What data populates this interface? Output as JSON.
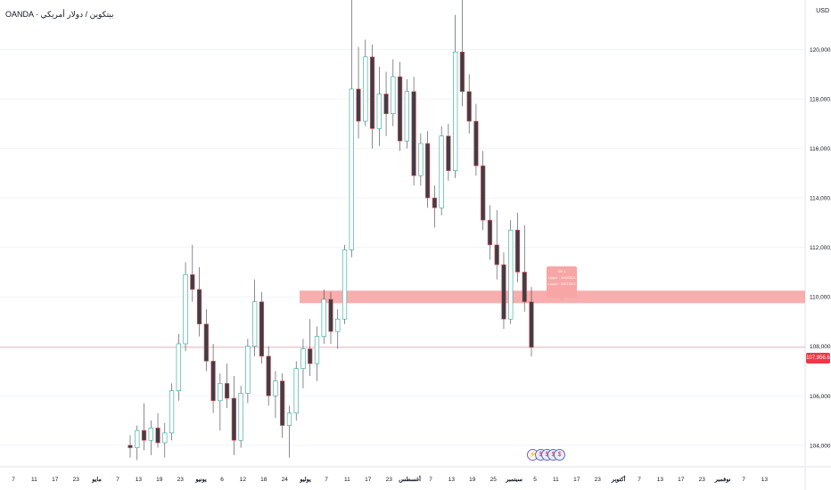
{
  "header": {
    "title": "OANDA · بيتكوين / دولار أمريكي",
    "currency": "USD"
  },
  "colors": {
    "up": "#26a69a",
    "down": "#ef5350",
    "zone": "#f7a5a5",
    "price_line": "#f23645",
    "grid": "#f0f3fa",
    "axis_text": "#131722"
  },
  "zone_tooltip": {
    "line1": "SR 1",
    "line2": "Upper : 110250.5",
    "line3": "Lower : 109746.5"
  },
  "current_price": {
    "label": "107,956.6",
    "value": 107956.6
  },
  "events": [
    "lightning-icon",
    "us-flag-icon",
    "us-flag-icon",
    "us-flag-icon",
    "us-flag-icon"
  ],
  "chart_data": {
    "type": "candlestick",
    "y_ticks": [
      "120,000.0",
      "118,000.0",
      "116,000.0",
      "114,000.0",
      "112,000.0",
      "110,000.0",
      "108,000.0",
      "106,000.0",
      "104,000.0"
    ],
    "y_tick_values": [
      120000,
      118000,
      116000,
      114000,
      112000,
      110000,
      108000,
      106000,
      104000
    ],
    "ylim": [
      103200,
      122000
    ],
    "x_ticks": [
      "7",
      "11",
      "17",
      "23",
      "مايو",
      "7",
      "13",
      "19",
      "23",
      "يونيو",
      "6",
      "12",
      "18",
      "24",
      "يوليو",
      "7",
      "11",
      "17",
      "23",
      "أغسطس",
      "7",
      "13",
      "19",
      "25",
      "سبتمبر",
      "5",
      "11",
      "17",
      "23",
      "أكتوبر",
      "7",
      "13",
      "17",
      "23",
      "نوفمبر",
      "7",
      "13"
    ],
    "zone": {
      "upper": 110250.5,
      "lower": 109746.5
    },
    "candles": [
      [
        104000,
        104400,
        103500,
        103900
      ],
      [
        103900,
        104800,
        103400,
        104600
      ],
      [
        104600,
        105700,
        103800,
        104200
      ],
      [
        104200,
        105000,
        103600,
        104700
      ],
      [
        104700,
        105300,
        103900,
        104100
      ],
      [
        104100,
        104900,
        103500,
        104500
      ],
      [
        104500,
        106500,
        104200,
        106200
      ],
      [
        106200,
        108500,
        105800,
        108100
      ],
      [
        108100,
        111400,
        107800,
        110900
      ],
      [
        110900,
        112100,
        109800,
        110300
      ],
      [
        110300,
        111200,
        108400,
        108900
      ],
      [
        108900,
        109500,
        107000,
        107400
      ],
      [
        107400,
        108100,
        105300,
        105800
      ],
      [
        105800,
        106900,
        104600,
        106500
      ],
      [
        106500,
        107300,
        105500,
        105900
      ],
      [
        105900,
        106800,
        103600,
        104200
      ],
      [
        104200,
        106400,
        103900,
        106100
      ],
      [
        106100,
        108300,
        105700,
        108000
      ],
      [
        108000,
        110700,
        107600,
        109800
      ],
      [
        109800,
        110200,
        107300,
        107600
      ],
      [
        107600,
        108000,
        105600,
        106000
      ],
      [
        106000,
        107000,
        105100,
        106600
      ],
      [
        106600,
        106900,
        104300,
        104800
      ],
      [
        104800,
        105600,
        103500,
        105300
      ],
      [
        105300,
        107400,
        105000,
        107100
      ],
      [
        107100,
        108300,
        106300,
        107900
      ],
      [
        107900,
        109100,
        106800,
        107300
      ],
      [
        107300,
        108800,
        106600,
        108400
      ],
      [
        108400,
        110300,
        108100,
        109900
      ],
      [
        109900,
        110200,
        108100,
        108600
      ],
      [
        108600,
        109500,
        107900,
        109100
      ],
      [
        109100,
        112100,
        108900,
        111900
      ],
      [
        111900,
        123200,
        111600,
        118400
      ],
      [
        118400,
        120100,
        116400,
        117100
      ],
      [
        117100,
        120400,
        116900,
        119700
      ],
      [
        119700,
        120200,
        116000,
        116800
      ],
      [
        116800,
        119300,
        116100,
        118200
      ],
      [
        118200,
        119100,
        116500,
        117400
      ],
      [
        117400,
        119600,
        116900,
        118900
      ],
      [
        118900,
        119500,
        115900,
        116300
      ],
      [
        116300,
        118800,
        116000,
        118300
      ],
      [
        118300,
        118900,
        114500,
        114900
      ],
      [
        114900,
        116600,
        114500,
        116200
      ],
      [
        116200,
        116700,
        113600,
        114000
      ],
      [
        114000,
        114500,
        112800,
        113600
      ],
      [
        113600,
        116900,
        113300,
        116500
      ],
      [
        116500,
        117000,
        114700,
        115100
      ],
      [
        115100,
        121400,
        114800,
        119900
      ],
      [
        119900,
        124300,
        117700,
        118300
      ],
      [
        118300,
        119000,
        116600,
        117100
      ],
      [
        117100,
        117800,
        114900,
        115300
      ],
      [
        115300,
        115900,
        112700,
        113100
      ],
      [
        113100,
        113700,
        111500,
        112100
      ],
      [
        112100,
        113500,
        110700,
        111300
      ],
      [
        111300,
        111800,
        108700,
        109100
      ],
      [
        109100,
        113100,
        108900,
        112700
      ],
      [
        112700,
        113400,
        110600,
        111000
      ],
      [
        111000,
        112900,
        109400,
        109800
      ],
      [
        109800,
        110400,
        107600,
        107956.6
      ]
    ]
  }
}
